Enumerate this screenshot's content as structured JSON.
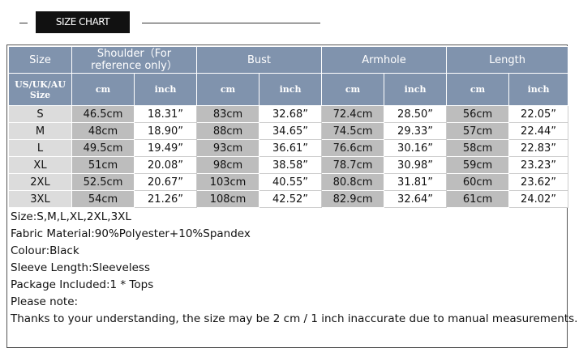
{
  "header": {
    "title": "SIZE CHART"
  },
  "table": {
    "columns": [
      "Size",
      "Shoulder（For reference only）",
      "Bust",
      "Armhole",
      "Length"
    ],
    "subheader": [
      "US/UK/AU Size",
      "cm",
      "inch",
      "cm",
      "inch",
      "cm",
      "inch",
      "cm",
      "inch"
    ],
    "rows": [
      [
        "S",
        "46.5cm",
        "18.31”",
        "83cm",
        "32.68”",
        "72.4cm",
        "28.50”",
        "56cm",
        "22.05”"
      ],
      [
        "M",
        "48cm",
        "18.90”",
        "88cm",
        "34.65”",
        "74.5cm",
        "29.33”",
        "57cm",
        "22.44”"
      ],
      [
        "L",
        "49.5cm",
        "19.49”",
        "93cm",
        "36.61”",
        "76.6cm",
        "30.16”",
        "58cm",
        "22.83”"
      ],
      [
        "XL",
        "51cm",
        "20.08”",
        "98cm",
        "38.58”",
        "78.7cm",
        "30.98”",
        "59cm",
        "23.23”"
      ],
      [
        "2XL",
        "52.5cm",
        "20.67”",
        "103cm",
        "40.55”",
        "80.8cm",
        "31.81”",
        "60cm",
        "23.62”"
      ],
      [
        "3XL",
        "54cm",
        "21.26”",
        "108cm",
        "42.52”",
        "82.9cm",
        "32.64”",
        "61cm",
        "24.02”"
      ]
    ]
  },
  "notes": [
    "Size:S,M,L,XL,2XL,3XL",
    "Fabric Material:90%Polyester+10%Spandex",
    "Colour:Black",
    "Sleeve Length:Sleeveless",
    "Package Included:1 * Tops",
    "Please note:",
    "Thanks to your understanding, the size may be 2 cm / 1 inch inaccurate due to manual measurements."
  ]
}
